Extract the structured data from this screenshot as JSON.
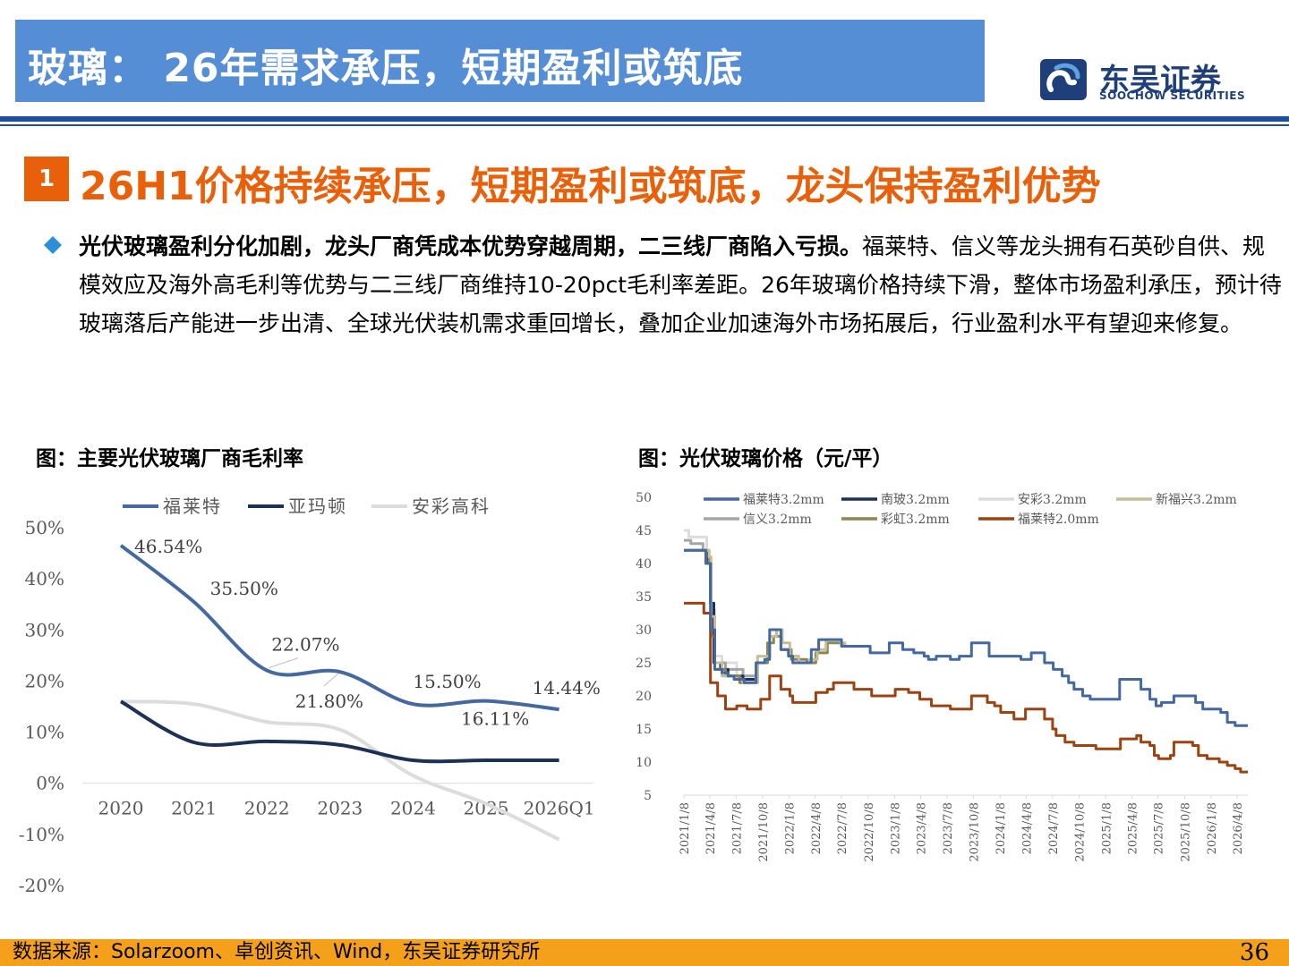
{
  "header": {
    "title": "玻璃： 26年需求承压，短期盈利或筑底",
    "logo_cn": "东吴证券",
    "logo_en": "SOOCHOW SECURITIES"
  },
  "section": {
    "number": "1",
    "title": "26H1价格持续承压，短期盈利或筑底，龙头保持盈利优势"
  },
  "paragraph": {
    "bold": "光伏玻璃盈利分化加剧，龙头厂商凭成本优势穿越周期，二三线厂商陷入亏损。",
    "text": "福莱特、信义等龙头拥有石英砂自供、规模效应及海外高毛利等优势与二三线厂商维持10-20pct毛利率差距。26年玻璃价格持续下滑，整体市场盈利承压，预计待玻璃落后产能进一步出清、全球光伏装机需求重回增长，叠加企业加速海外市场拓展后，行业盈利水平有望迎来修复。"
  },
  "footer": {
    "source": "数据来源：Solarzoom、卓创资讯、Wind，东吴证券研究所",
    "page": "36"
  },
  "colors": {
    "title_bar": "#558ed5",
    "accent_orange": "#e9600a",
    "navy": "#1f4e9a",
    "footer": "#f5a01a"
  },
  "chart_data": [
    {
      "type": "line",
      "title": "图：主要光伏玻璃厂商毛利率",
      "categories": [
        "2020",
        "2021",
        "2022",
        "2023",
        "2024",
        "2025",
        "2026Q1"
      ],
      "y_ticks": [
        "50%",
        "40%",
        "30%",
        "20%",
        "10%",
        "0%",
        "-10%",
        "-20%"
      ],
      "ylim": [
        -20,
        50
      ],
      "legend_position": "top",
      "series": [
        {
          "name": "福莱特",
          "color": "#44689f",
          "values": [
            46.54,
            35.5,
            22.07,
            21.8,
            15.5,
            16.11,
            14.44
          ],
          "labels": [
            "46.54%",
            "35.50%",
            "22.07%",
            "21.80%",
            "15.50%",
            "16.11%",
            "14.44%"
          ]
        },
        {
          "name": "亚玛顿",
          "color": "#1c3153",
          "values": [
            16.0,
            8.0,
            8.2,
            7.5,
            4.5,
            4.5,
            4.5
          ]
        },
        {
          "name": "安彩高科",
          "color": "#dcdcdc",
          "values": [
            16.0,
            15.5,
            12.0,
            10.5,
            1.5,
            -4.0,
            -11.0
          ]
        }
      ]
    },
    {
      "type": "line",
      "title": "图：光伏玻璃价格（元/平）",
      "y_ticks": [
        "50",
        "45",
        "40",
        "35",
        "30",
        "25",
        "20",
        "15",
        "10",
        "5"
      ],
      "ylim": [
        5,
        50
      ],
      "x_ticks": [
        "2021/1/8",
        "2021/4/8",
        "2021/7/8",
        "2021/10/8",
        "2022/1/8",
        "2022/4/8",
        "2022/7/8",
        "2022/10/8",
        "2023/1/8",
        "2023/4/8",
        "2023/7/8",
        "2023/10/8",
        "2024/1/8",
        "2024/4/8",
        "2024/7/8",
        "2024/10/8",
        "2025/1/8",
        "2025/4/8",
        "2025/7/8",
        "2025/10/8",
        "2026/1/8",
        "2026/4/8"
      ],
      "legend_position": "top",
      "series": [
        {
          "name": "福莱特3.2mm",
          "color": "#44689f",
          "points": [
            [
              "2021/1/8",
              42
            ],
            [
              "2021/3/20",
              42
            ],
            [
              "2021/3/25",
              40
            ],
            [
              "2021/4/1",
              40
            ],
            [
              "2021/4/10",
              30
            ],
            [
              "2021/4/25",
              24
            ],
            [
              "2021/5/20",
              23.5
            ],
            [
              "2021/6/10",
              23
            ],
            [
              "2021/7/1",
              22.5
            ],
            [
              "2021/8/5",
              22
            ],
            [
              "2021/9/5",
              22
            ],
            [
              "2021/9/15",
              25
            ],
            [
              "2021/10/15",
              25.5
            ],
            [
              "2021/11/1",
              30
            ],
            [
              "2021/11/25",
              30
            ],
            [
              "2021/12/10",
              27
            ],
            [
              "2022/1/5",
              26
            ],
            [
              "2022/1/20",
              25
            ],
            [
              "2022/3/10",
              25
            ],
            [
              "2022/3/25",
              27
            ],
            [
              "2022/4/20",
              28.5
            ],
            [
              "2022/6/20",
              28.5
            ],
            [
              "2022/7/8",
              27.5
            ],
            [
              "2022/10/1",
              27.5
            ],
            [
              "2022/10/15",
              26.5
            ],
            [
              "2022/12/10",
              26.5
            ],
            [
              "2022/12/20",
              28
            ],
            [
              "2023/1/20",
              28
            ],
            [
              "2023/2/5",
              27
            ],
            [
              "2023/3/10",
              27
            ],
            [
              "2023/3/15",
              26.5
            ],
            [
              "2023/4/20",
              26
            ],
            [
              "2023/5/5",
              25.5
            ],
            [
              "2023/6/1",
              26
            ],
            [
              "2023/7/8",
              26
            ],
            [
              "2023/7/20",
              25.5
            ],
            [
              "2023/8/10",
              25.5
            ],
            [
              "2023/8/20",
              26
            ],
            [
              "2023/9/20",
              26
            ],
            [
              "2023/10/1",
              28
            ],
            [
              "2023/11/10",
              28
            ],
            [
              "2023/12/1",
              26
            ],
            [
              "2024/1/8",
              26
            ],
            [
              "2024/3/10",
              26
            ],
            [
              "2024/3/20",
              25.5
            ],
            [
              "2024/4/15",
              25.5
            ],
            [
              "2024/4/25",
              26.5
            ],
            [
              "2024/5/30",
              26.5
            ],
            [
              "2024/6/10",
              25
            ],
            [
              "2024/7/10",
              24
            ],
            [
              "2024/8/10",
              23
            ],
            [
              "2024/9/1",
              22
            ],
            [
              "2024/9/20",
              21
            ],
            [
              "2024/10/20",
              20
            ],
            [
              "2024/11/15",
              19.5
            ],
            [
              "2025/2/15",
              19.5
            ],
            [
              "2025/2/25",
              22.5
            ],
            [
              "2025/4/10",
              22.5
            ],
            [
              "2025/5/10",
              21
            ],
            [
              "2025/6/10",
              19.5
            ],
            [
              "2025/7/1",
              18.5
            ],
            [
              "2025/7/20",
              19
            ],
            [
              "2025/8/20",
              19
            ],
            [
              "2025/9/1",
              20
            ],
            [
              "2025/10/20",
              20
            ],
            [
              "2025/11/15",
              19
            ],
            [
              "2025/12/10",
              18
            ],
            [
              "2026/1/20",
              18
            ],
            [
              "2026/2/10",
              17.5
            ],
            [
              "2026/3/5",
              16
            ],
            [
              "2026/4/1",
              15.5
            ],
            [
              "2026/5/15",
              15.5
            ]
          ]
        },
        {
          "name": "南玻3.2mm",
          "color": "#1c3153",
          "points": [
            [
              "2021/1/8",
              42
            ],
            [
              "2021/3/20",
              42
            ],
            [
              "2021/3/28",
              40
            ],
            [
              "2021/4/5",
              40
            ],
            [
              "2021/4/10",
              34
            ],
            [
              "2021/4/22",
              25
            ],
            [
              "2021/5/15",
              24
            ],
            [
              "2021/6/10",
              23
            ],
            [
              "2021/8/1",
              22.5
            ],
            [
              "2021/9/10",
              22.5
            ]
          ]
        },
        {
          "name": "安彩3.2mm",
          "color": "#dcdcdc",
          "points": [
            [
              "2021/1/8",
              45
            ],
            [
              "2021/1/25",
              44
            ],
            [
              "2021/3/15",
              44
            ],
            [
              "2021/3/28",
              40
            ],
            [
              "2021/4/10",
              33
            ],
            [
              "2021/4/25",
              26
            ],
            [
              "2021/5/20",
              25
            ],
            [
              "2021/7/10",
              23
            ],
            [
              "2021/9/10",
              23
            ]
          ]
        },
        {
          "name": "新福兴3.2mm",
          "color": "#c4bd97",
          "points": [
            [
              "2021/1/8",
              42
            ],
            [
              "2021/3/20",
              42
            ],
            [
              "2021/4/5",
              41
            ],
            [
              "2021/4/12",
              32
            ],
            [
              "2021/4/25",
              25
            ],
            [
              "2021/5/20",
              23
            ],
            [
              "2021/7/1",
              22.5
            ],
            [
              "2021/8/1",
              22
            ],
            [
              "2021/9/5",
              22
            ],
            [
              "2021/9/20",
              26
            ],
            [
              "2021/11/1",
              29
            ],
            [
              "2021/11/25",
              30
            ],
            [
              "2021/12/15",
              28
            ],
            [
              "2022/1/10",
              26
            ],
            [
              "2022/2/10",
              25
            ],
            [
              "2022/3/20",
              25.5
            ],
            [
              "2022/4/15",
              27
            ],
            [
              "2022/5/15",
              28.5
            ],
            [
              "2022/7/5",
              28
            ],
            [
              "2022/7/20",
              27.5
            ],
            [
              "2022/9/1",
              27.5
            ]
          ]
        },
        {
          "name": "信义3.2mm",
          "color": "#a5a5a5",
          "points": [
            [
              "2021/1/8",
              43.5
            ],
            [
              "2021/2/1",
              43
            ],
            [
              "2021/3/15",
              42
            ],
            [
              "2021/4/1",
              40
            ],
            [
              "2021/4/12",
              30
            ],
            [
              "2021/4/25",
              25
            ],
            [
              "2021/6/1",
              24
            ],
            [
              "2021/8/1",
              23
            ],
            [
              "2021/9/10",
              23
            ]
          ]
        },
        {
          "name": "彩虹3.2mm",
          "color": "#8a8750",
          "points": [
            [
              "2021/1/8",
              42
            ],
            [
              "2021/3/20",
              42
            ],
            [
              "2021/4/5",
              40
            ],
            [
              "2021/4/12",
              29
            ],
            [
              "2021/4/25",
              24
            ],
            [
              "2021/6/1",
              23
            ],
            [
              "2021/7/20",
              22
            ],
            [
              "2021/9/5",
              22
            ],
            [
              "2021/9/20",
              25
            ],
            [
              "2021/10/25",
              28
            ],
            [
              "2021/11/15",
              29
            ],
            [
              "2021/12/10",
              27
            ],
            [
              "2022/1/15",
              25.5
            ],
            [
              "2022/3/10",
              25
            ],
            [
              "2022/4/10",
              26.5
            ],
            [
              "2022/5/20",
              28
            ],
            [
              "2022/7/10",
              27.5
            ],
            [
              "2022/9/1",
              27.5
            ]
          ]
        },
        {
          "name": "福莱特2.0mm",
          "color": "#9c4313",
          "points": [
            [
              "2021/1/8",
              34
            ],
            [
              "2021/3/10",
              34
            ],
            [
              "2021/3/18",
              32.5
            ],
            [
              "2021/4/1",
              32.5
            ],
            [
              "2021/4/10",
              22
            ],
            [
              "2021/4/25",
              22
            ],
            [
              "2021/5/5",
              20
            ],
            [
              "2021/5/20",
              20
            ],
            [
              "2021/6/1",
              18
            ],
            [
              "2021/7/1",
              18
            ],
            [
              "2021/7/10",
              18.5
            ],
            [
              "2021/8/1",
              18.5
            ],
            [
              "2021/8/15",
              18
            ],
            [
              "2021/9/20",
              18
            ],
            [
              "2021/10/1",
              19.5
            ],
            [
              "2021/10/20",
              19.5
            ],
            [
              "2021/11/1",
              23
            ],
            [
              "2021/11/25",
              23
            ],
            [
              "2021/12/10",
              21
            ],
            [
              "2022/1/10",
              20
            ],
            [
              "2022/1/20",
              19
            ],
            [
              "2022/3/25",
              19
            ],
            [
              "2022/4/10",
              20.5
            ],
            [
              "2022/5/20",
              21
            ],
            [
              "2022/6/10",
              22
            ],
            [
              "2022/8/10",
              22
            ],
            [
              "2022/8/20",
              21
            ],
            [
              "2022/10/10",
              21
            ],
            [
              "2022/10/20",
              20
            ],
            [
              "2022/12/20",
              20
            ],
            [
              "2023/1/10",
              21
            ],
            [
              "2023/2/10",
              21
            ],
            [
              "2023/2/25",
              20.5
            ],
            [
              "2023/3/25",
              20.5
            ],
            [
              "2023/4/5",
              19.5
            ],
            [
              "2023/5/5",
              19.5
            ],
            [
              "2023/5/15",
              18.5
            ],
            [
              "2023/7/8",
              18.5
            ],
            [
              "2023/7/20",
              18
            ],
            [
              "2023/9/20",
              18
            ],
            [
              "2023/10/1",
              20
            ],
            [
              "2023/11/10",
              20
            ],
            [
              "2023/11/25",
              19
            ],
            [
              "2023/12/20",
              18.5
            ],
            [
              "2024/1/10",
              17.5
            ],
            [
              "2024/2/15",
              17.5
            ],
            [
              "2024/2/25",
              16.5
            ],
            [
              "2024/3/25",
              16.5
            ],
            [
              "2024/4/5",
              18
            ],
            [
              "2024/5/25",
              18
            ],
            [
              "2024/6/10",
              16.5
            ],
            [
              "2024/7/8",
              15
            ],
            [
              "2024/7/20",
              14
            ],
            [
              "2024/8/20",
              13
            ],
            [
              "2024/9/20",
              12.5
            ],
            [
              "2024/11/20",
              12.5
            ],
            [
              "2024/12/5",
              12
            ],
            [
              "2025/1/20",
              12
            ],
            [
              "2025/2/20",
              12
            ],
            [
              "2025/2/28",
              13.5
            ],
            [
              "2025/4/5",
              13.5
            ],
            [
              "2025/4/25",
              14
            ],
            [
              "2025/5/10",
              13
            ],
            [
              "2025/6/10",
              12.5
            ],
            [
              "2025/6/25",
              11
            ],
            [
              "2025/7/10",
              10.5
            ],
            [
              "2025/8/1",
              10.5
            ],
            [
              "2025/8/20",
              11
            ],
            [
              "2025/9/1",
              13
            ],
            [
              "2025/10/20",
              13
            ],
            [
              "2025/11/5",
              12.5
            ],
            [
              "2025/11/25",
              11
            ],
            [
              "2025/12/25",
              10.5
            ],
            [
              "2026/1/20",
              10.5
            ],
            [
              "2026/2/5",
              10
            ],
            [
              "2026/3/5",
              9.5
            ],
            [
              "2026/4/1",
              9
            ],
            [
              "2026/4/20",
              8.5
            ],
            [
              "2026/5/15",
              8.5
            ]
          ]
        }
      ]
    }
  ]
}
